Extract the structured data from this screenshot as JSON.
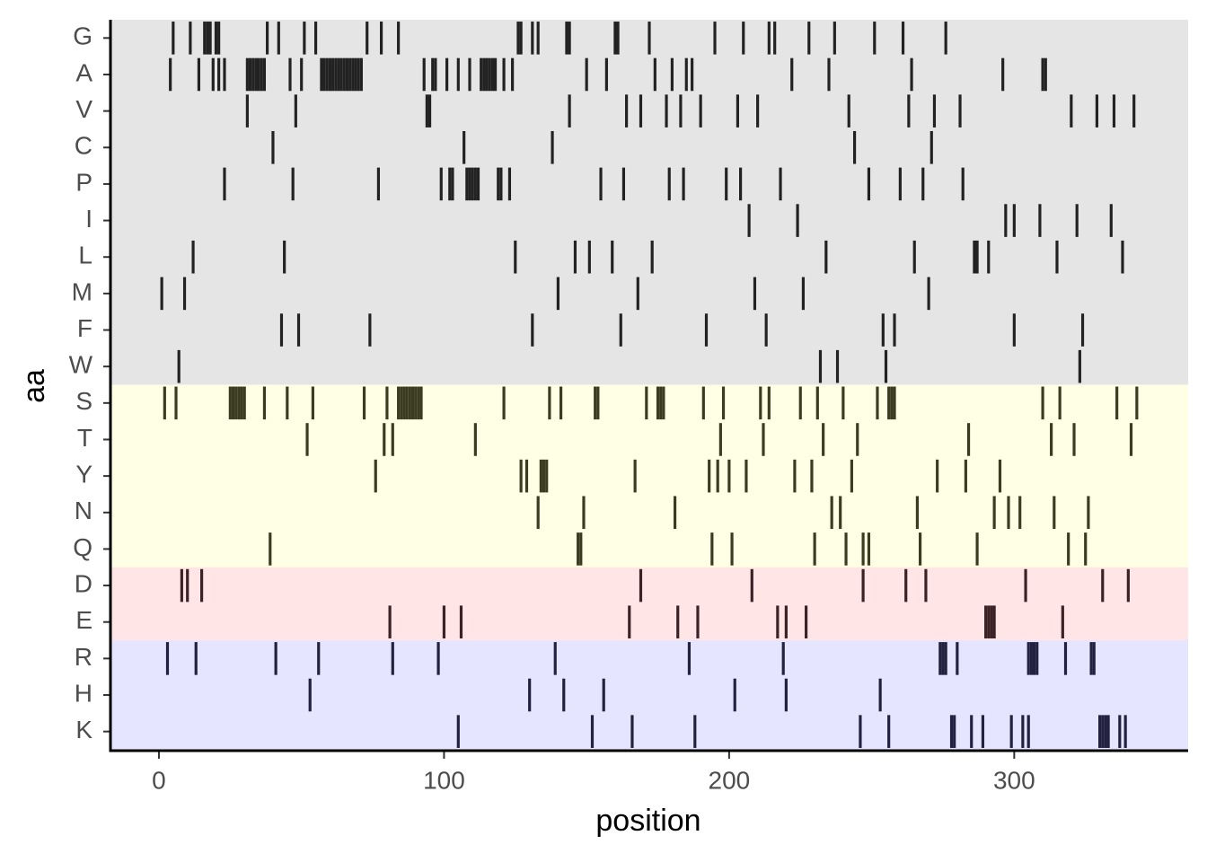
{
  "chart_data": {
    "type": "strip",
    "x_label": "position",
    "y_label": "aa",
    "xlim": [
      -17,
      361
    ],
    "xticks": [
      0,
      100,
      200,
      300
    ],
    "rows": [
      {
        "name": "G",
        "background": "#e5e5e5",
        "color": "#222222",
        "positions": [
          5,
          11,
          16,
          17,
          18,
          20,
          21,
          38,
          42,
          51,
          55,
          73,
          78,
          84,
          126,
          127,
          131,
          133,
          143,
          144,
          160,
          161,
          172,
          195,
          205,
          214,
          216,
          228,
          237,
          251,
          261,
          276
        ]
      },
      {
        "name": "A",
        "background": "#e5e5e5",
        "color": "#222222",
        "positions": [
          4,
          14,
          19,
          21,
          23,
          31,
          32,
          33,
          34,
          35,
          36,
          37,
          46,
          50,
          57,
          58,
          59,
          60,
          61,
          62,
          63,
          64,
          65,
          66,
          67,
          68,
          69,
          70,
          71,
          93,
          96,
          97,
          101,
          105,
          109,
          113,
          114,
          115,
          116,
          117,
          118,
          121,
          124,
          150,
          157,
          174,
          180,
          185,
          187,
          222,
          235,
          264,
          296,
          310,
          311
        ]
      },
      {
        "name": "V",
        "background": "#e5e5e5",
        "color": "#222222",
        "positions": [
          31,
          48,
          94,
          95,
          144,
          164,
          169,
          178,
          183,
          190,
          203,
          210,
          242,
          263,
          272,
          281,
          320,
          329,
          335,
          342
        ]
      },
      {
        "name": "C",
        "background": "#e5e5e5",
        "color": "#222222",
        "positions": [
          40,
          107,
          138,
          244,
          271
        ]
      },
      {
        "name": "P",
        "background": "#e5e5e5",
        "color": "#222222",
        "positions": [
          23,
          47,
          77,
          99,
          102,
          103,
          108,
          109,
          110,
          111,
          112,
          119,
          120,
          123,
          155,
          163,
          179,
          184,
          199,
          204,
          218,
          249,
          260,
          268,
          282
        ]
      },
      {
        "name": "I",
        "background": "#e5e5e5",
        "color": "#222222",
        "positions": [
          207,
          224,
          297,
          300,
          309,
          322,
          334
        ]
      },
      {
        "name": "L",
        "background": "#e5e5e5",
        "color": "#222222",
        "positions": [
          12,
          44,
          125,
          146,
          151,
          159,
          173,
          234,
          265,
          286,
          287,
          291,
          315,
          338
        ]
      },
      {
        "name": "M",
        "background": "#e5e5e5",
        "color": "#222222",
        "positions": [
          1,
          9,
          140,
          168,
          209,
          226,
          270
        ]
      },
      {
        "name": "F",
        "background": "#e5e5e5",
        "color": "#222222",
        "positions": [
          43,
          49,
          74,
          131,
          162,
          192,
          213,
          254,
          258,
          300,
          324
        ]
      },
      {
        "name": "W",
        "background": "#e5e5e5",
        "color": "#222222",
        "positions": [
          7,
          232,
          238,
          255,
          323
        ]
      },
      {
        "name": "S",
        "background": "#ffffe5",
        "color": "#3b3b22",
        "positions": [
          2,
          6,
          25,
          26,
          27,
          28,
          29,
          30,
          37,
          45,
          54,
          72,
          80,
          84,
          85,
          86,
          87,
          88,
          89,
          90,
          91,
          92,
          121,
          137,
          141,
          153,
          154,
          171,
          175,
          176,
          177,
          191,
          198,
          211,
          214,
          225,
          231,
          240,
          252,
          256,
          257,
          258,
          310,
          316,
          336,
          343
        ]
      },
      {
        "name": "T",
        "background": "#ffffe5",
        "color": "#3b3b22",
        "positions": [
          52,
          79,
          82,
          111,
          197,
          212,
          233,
          245,
          284,
          313,
          321,
          341
        ]
      },
      {
        "name": "Y",
        "background": "#ffffe5",
        "color": "#3b3b22",
        "positions": [
          76,
          127,
          129,
          134,
          135,
          136,
          167,
          193,
          196,
          200,
          206,
          223,
          229,
          243,
          273,
          283,
          295
        ]
      },
      {
        "name": "N",
        "background": "#ffffe5",
        "color": "#3b3b22",
        "positions": [
          133,
          149,
          181,
          236,
          239,
          266,
          293,
          298,
          302,
          314,
          326
        ]
      },
      {
        "name": "Q",
        "background": "#ffffe5",
        "color": "#3b3b22",
        "positions": [
          39,
          147,
          148,
          194,
          201,
          230,
          241,
          247,
          249,
          267,
          287,
          319,
          325
        ]
      },
      {
        "name": "D",
        "background": "#ffe5e5",
        "color": "#3b2226",
        "positions": [
          8,
          10,
          15,
          169,
          208,
          247,
          262,
          269,
          304,
          331,
          340
        ]
      },
      {
        "name": "E",
        "background": "#ffe5e5",
        "color": "#3b2226",
        "positions": [
          81,
          100,
          106,
          165,
          182,
          189,
          217,
          220,
          227,
          290,
          291,
          292,
          293,
          317
        ]
      },
      {
        "name": "R",
        "background": "#e5e5ff",
        "color": "#222240",
        "positions": [
          3,
          13,
          41,
          56,
          82,
          98,
          139,
          186,
          219,
          274,
          275,
          276,
          280,
          305,
          306,
          307,
          308,
          318,
          327,
          328
        ]
      },
      {
        "name": "H",
        "background": "#e5e5ff",
        "color": "#222240",
        "positions": [
          53,
          130,
          142,
          156,
          202,
          220,
          253
        ]
      },
      {
        "name": "K",
        "background": "#e5e5ff",
        "color": "#222240",
        "positions": [
          105,
          152,
          166,
          188,
          246,
          256,
          278,
          279,
          285,
          289,
          299,
          303,
          305,
          330,
          331,
          332,
          333,
          337,
          339
        ]
      }
    ]
  }
}
